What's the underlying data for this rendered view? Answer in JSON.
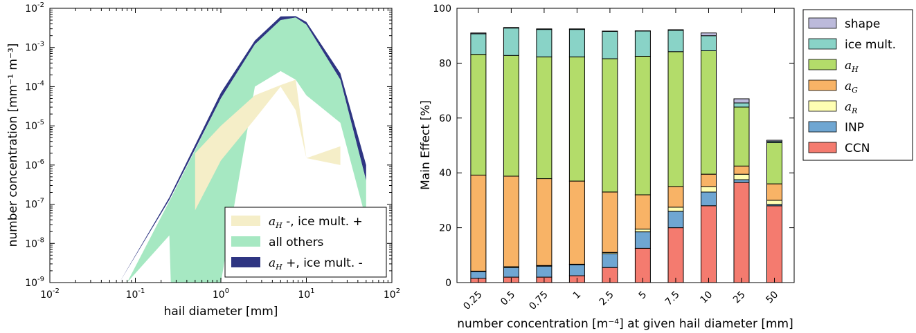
{
  "chart_data": [
    {
      "type": "area",
      "xlabel": "hail diameter [mm]",
      "ylabel": "number concentration [mm⁻¹ m⁻³]",
      "x_scale": "log",
      "y_scale": "log",
      "xlim": [
        0.01,
        100
      ],
      "ylim": [
        1e-09,
        0.01
      ],
      "x_ticks": [
        {
          "value": 0.01,
          "label": "10-2"
        },
        {
          "value": 0.1,
          "label": "10-1"
        },
        {
          "value": 1,
          "label": "100"
        },
        {
          "value": 10,
          "label": "101"
        },
        {
          "value": 100,
          "label": "102"
        }
      ],
      "y_ticks": [
        {
          "value": 1e-09,
          "label": "10-9"
        },
        {
          "value": 1e-08,
          "label": "10-8"
        },
        {
          "value": 1e-07,
          "label": "10-7"
        },
        {
          "value": 1e-06,
          "label": "10-6"
        },
        {
          "value": 1e-05,
          "label": "10-5"
        },
        {
          "value": 0.0001,
          "label": "10-4"
        },
        {
          "value": 0.001,
          "label": "10-3"
        },
        {
          "value": 0.01,
          "label": "10-2"
        }
      ],
      "legend_position": "lower-right",
      "series": [
        {
          "name": "aH +, ice mult. -",
          "color": "#2e3582",
          "x": [
            0.065,
            0.25,
            1.0,
            2.5,
            5.0,
            7.5,
            10,
            25,
            50
          ],
          "upper": [
            1e-09,
            1.5e-07,
            7e-05,
            0.0015,
            0.0062,
            0.0063,
            0.0045,
            0.00022,
            1e-06
          ],
          "lower": [
            1e-09,
            1.3e-07,
            5e-05,
            0.0012,
            0.005,
            0.0058,
            0.0038,
            0.00015,
            4e-07
          ]
        },
        {
          "name": "all others",
          "color": "#a6e8c2",
          "x": [
            0.08,
            0.25,
            0.26,
            1.0,
            2.5,
            5.0,
            7.5,
            10,
            25,
            50
          ],
          "upper": [
            1e-09,
            1.2e-07,
            1.4e-07,
            5e-05,
            0.0012,
            0.005,
            0.0058,
            0.0038,
            0.00015,
            4e-07
          ],
          "lower": [
            1e-09,
            1.6e-08,
            1e-09,
            1e-09,
            0.0001,
            0.00025,
            0.00015,
            6e-05,
            1.2e-05,
            4e-08
          ]
        },
        {
          "name": "aH -, ice mult. +",
          "color": "#f5eec8",
          "x": [
            0.5,
            1.0,
            2.5,
            5.0,
            7.5,
            10,
            25
          ],
          "upper": [
            2e-06,
            1e-05,
            6e-05,
            0.00011,
            0.00015,
            1.5e-06,
            3e-06
          ],
          "lower": [
            7e-08,
            1.3e-06,
            1.5e-05,
            0.0001,
            2.5e-05,
            1.5e-06,
            1e-06
          ]
        }
      ]
    },
    {
      "type": "bar",
      "stacked": true,
      "xlabel": "number concentration [m⁻⁴] at given hail diameter [mm]",
      "ylabel": "Main Effect [%]",
      "ylim": [
        0,
        100
      ],
      "y_ticks": [
        0,
        20,
        40,
        60,
        80,
        100
      ],
      "legend_position": "upper-right (outside)",
      "categories": [
        "0.25",
        "0.5",
        "0.75",
        "1",
        "2.5",
        "5",
        "7.5",
        "10",
        "25",
        "50"
      ],
      "series": [
        {
          "name": "CCN",
          "color": "#f47b6f",
          "values": [
            1.5,
            2.0,
            2.0,
            2.5,
            5.5,
            12.5,
            20.0,
            28.0,
            36.5,
            28.0
          ]
        },
        {
          "name": "INP",
          "color": "#6fa6d2",
          "values": [
            2.5,
            3.5,
            4.0,
            4.0,
            5.0,
            6.0,
            6.0,
            5.0,
            1.0,
            0.5
          ]
        },
        {
          "name": "aR",
          "color": "#ffffb3",
          "values": [
            0.2,
            0.3,
            0.2,
            0.2,
            0.5,
            1.0,
            1.5,
            2.0,
            2.0,
            1.5
          ]
        },
        {
          "name": "aG",
          "color": "#f8b366",
          "values": [
            35.0,
            33.0,
            31.7,
            30.3,
            22.0,
            12.5,
            7.5,
            4.5,
            3.0,
            6.0
          ]
        },
        {
          "name": "aH",
          "color": "#b3dc6a",
          "values": [
            44.0,
            44.0,
            44.4,
            45.3,
            48.6,
            50.5,
            49.2,
            45.0,
            21.5,
            15.0
          ]
        },
        {
          "name": "ice mult.",
          "color": "#89d3c7",
          "values": [
            7.5,
            10.0,
            10.0,
            10.0,
            10.0,
            9.2,
            7.8,
            5.5,
            1.5,
            0.5
          ]
        },
        {
          "name": "shape",
          "color": "#bcbadb",
          "values": [
            0.3,
            0.2,
            0.2,
            0.2,
            0.1,
            0.1,
            0.2,
            1.0,
            1.5,
            0.4
          ]
        }
      ]
    }
  ]
}
